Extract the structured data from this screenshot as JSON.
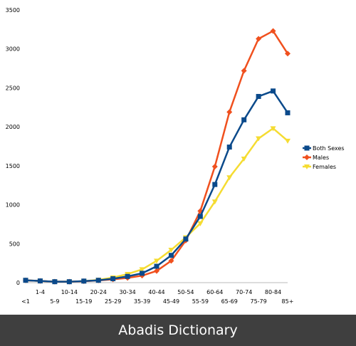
{
  "chart_data": {
    "type": "line",
    "title": "",
    "xlabel": "",
    "ylabel": "",
    "ylim": [
      0,
      3500
    ],
    "yticks": [
      0,
      500,
      1000,
      1500,
      2000,
      2500,
      3000,
      3500
    ],
    "grid": false,
    "legend_position": "right",
    "categories": [
      "<1",
      "1-4",
      "5-9",
      "10-14",
      "15-19",
      "20-24",
      "25-29",
      "30-34",
      "35-39",
      "40-44",
      "45-49",
      "50-54",
      "55-59",
      "60-64",
      "65-69",
      "70-74",
      "75-79",
      "80-84",
      "85+"
    ],
    "series": [
      {
        "name": "Both Sexes",
        "color": "#0b4a8b",
        "marker": "square",
        "values": [
          30,
          22,
          12,
          12,
          20,
          30,
          50,
          80,
          120,
          210,
          350,
          560,
          850,
          1260,
          1740,
          2090,
          2390,
          2460,
          2180
        ]
      },
      {
        "name": "Males",
        "color": "#f0501e",
        "marker": "diamond",
        "values": [
          30,
          22,
          12,
          12,
          18,
          28,
          42,
          60,
          90,
          150,
          280,
          540,
          920,
          1490,
          2190,
          2720,
          3130,
          3230,
          2940
        ]
      },
      {
        "name": "Females",
        "color": "#f5dc32",
        "marker": "triangle",
        "values": [
          30,
          22,
          12,
          12,
          20,
          35,
          65,
          110,
          170,
          280,
          420,
          580,
          760,
          1040,
          1350,
          1590,
          1850,
          1980,
          1820
        ]
      }
    ]
  },
  "footer": {
    "text": "Abadis Dictionary"
  }
}
